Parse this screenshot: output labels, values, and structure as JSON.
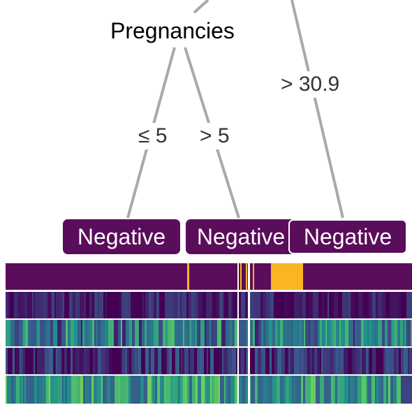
{
  "tree": {
    "split_node": {
      "label": "Pregnancies"
    },
    "edges": [
      {
        "id": "le5",
        "label": "≤ 5"
      },
      {
        "id": "gt5",
        "label": "> 5"
      },
      {
        "id": "gt309",
        "label": "> 30.9"
      }
    ],
    "leaves": [
      {
        "id": "leaf-1",
        "label": "Negative"
      },
      {
        "id": "leaf-2",
        "label": "Negative"
      },
      {
        "id": "leaf-3",
        "label": "Negative"
      }
    ]
  },
  "heatmap": {
    "rows": 5,
    "first_row_colors": {
      "negative": "#5a0d5a",
      "positive": "#f9b620"
    },
    "separators_visible": true
  },
  "colors": {
    "leaf_fill": "#5a0d5a",
    "edge_line": "#a9a9a9",
    "positive": "#f9b620",
    "negative": "#5a0d5a"
  }
}
